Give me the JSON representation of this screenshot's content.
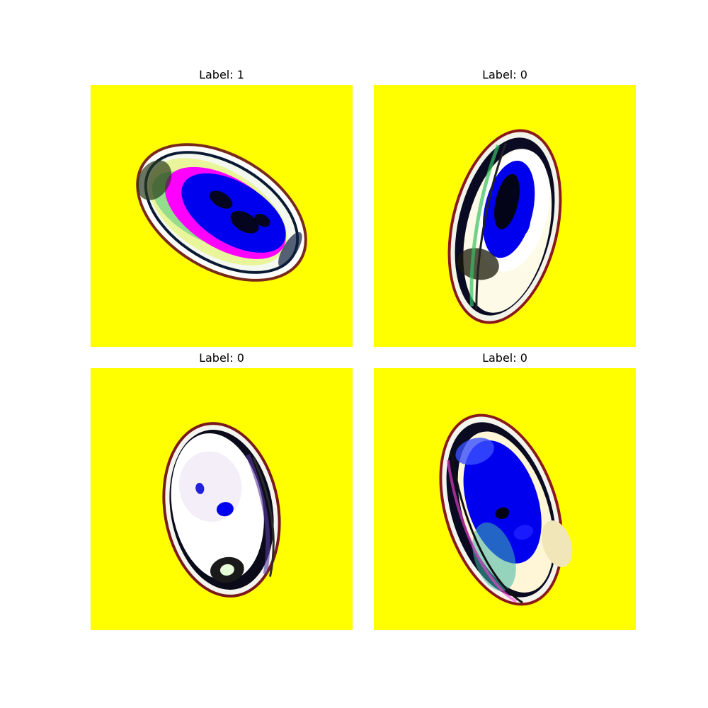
{
  "figure": {
    "background_color": "#ffffff",
    "panel_background_color": "#ffff00",
    "panels": [
      {
        "title": "Label: 1"
      },
      {
        "title": "Label: 0"
      },
      {
        "title": "Label: 0"
      },
      {
        "title": "Label: 0"
      }
    ]
  }
}
